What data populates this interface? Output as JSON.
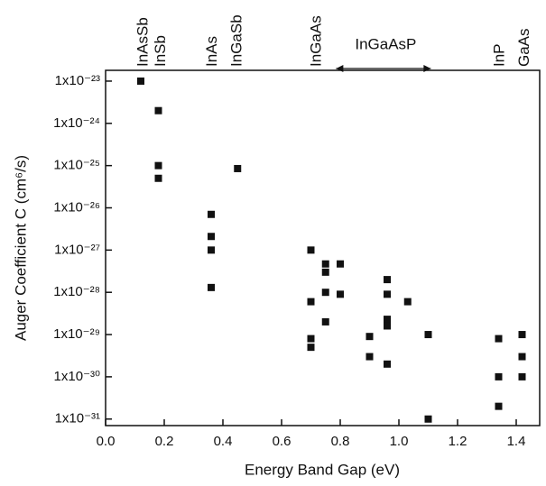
{
  "chart_data": {
    "type": "scatter",
    "x_label": "Energy Band Gap (eV)",
    "y_label": "Auger Coefficient C (cm⁶/s)",
    "log_y": true,
    "color": "#111111",
    "x": [
      0.12,
      0.18,
      0.18,
      0.18,
      0.36,
      0.36,
      0.36,
      0.36,
      0.45,
      0.7,
      0.7,
      0.7,
      0.7,
      0.75,
      0.75,
      0.75,
      0.75,
      0.8,
      0.8,
      0.9,
      0.9,
      0.96,
      0.96,
      0.96,
      0.96,
      0.96,
      1.03,
      1.1,
      1.1,
      1.34,
      1.34,
      1.34,
      1.42,
      1.42,
      1.42
    ],
    "values": [
      1e-23,
      2e-24,
      1e-25,
      5e-26,
      7e-27,
      2.1e-27,
      1e-27,
      1.3e-28,
      8.5e-26,
      1e-27,
      6e-29,
      8e-30,
      5e-30,
      4.7e-28,
      3e-28,
      1e-28,
      2e-29,
      4.7e-28,
      9e-29,
      9e-30,
      3e-30,
      2e-28,
      9e-29,
      2.3e-29,
      1.6e-29,
      2e-30,
      6e-29,
      1e-29,
      1e-31,
      8e-30,
      1e-30,
      2e-31,
      1e-29,
      3e-30,
      1e-30
    ],
    "xlim": [
      0,
      1.48
    ],
    "xticks": [
      {
        "value": 0,
        "label": "0.0"
      },
      0.2,
      0.4,
      0.6,
      0.8,
      {
        "value": 1,
        "label": "1.0"
      },
      1.2,
      1.4
    ],
    "ylim": [
      7e-32,
      1.8e-23
    ],
    "yticks": [
      {
        "value": 1e-31,
        "label": "1x10⁻³¹"
      },
      {
        "value": 1e-30,
        "label": "1x10⁻³⁰"
      },
      {
        "value": 1e-29,
        "label": "1x10⁻²⁹"
      },
      {
        "value": 1e-28,
        "label": "1x10⁻²⁸"
      },
      {
        "value": 1e-27,
        "label": "1x10⁻²⁷"
      },
      {
        "value": 1e-26,
        "label": "1x10⁻²⁶"
      },
      {
        "value": 1e-25,
        "label": "1x10⁻²⁵"
      },
      {
        "value": 1e-24,
        "label": "1x10⁻²⁴"
      },
      {
        "value": 1e-23,
        "label": "1x10⁻²³"
      }
    ],
    "annotations": [
      {
        "text": "InAsSb",
        "x": 0.13
      },
      {
        "text": "InSb",
        "x": 0.19
      },
      {
        "text": "InAs",
        "x": 0.365
      },
      {
        "text": "InGaSb",
        "x": 0.45
      },
      {
        "text": "InGaAs",
        "x": 0.72
      },
      {
        "text": "InGaAsP",
        "x": 0.955,
        "horizontal": true
      },
      {
        "text": "InP",
        "x": 1.345
      },
      {
        "text": "GaAs",
        "x": 1.43
      }
    ]
  }
}
